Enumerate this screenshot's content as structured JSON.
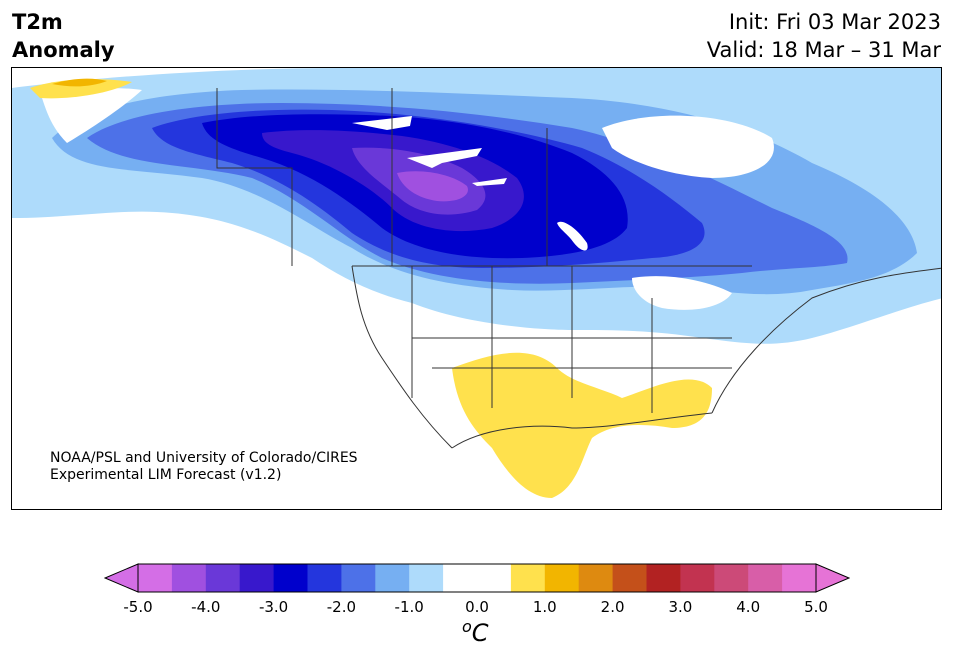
{
  "header": {
    "title_line1": "T2m",
    "title_line2": "Anomaly",
    "init": "Init: Fri 03 Mar 2023",
    "valid": "Valid: 18 Mar – 31 Mar"
  },
  "credit": {
    "line1": "NOAA/PSL and University of Colorado/CIRES",
    "line2": "Experimental LIM Forecast (v1.2)"
  },
  "colorbar": {
    "units_main": "C",
    "units_sup": "o",
    "ticks": [
      "-5.0",
      "-4.0",
      "-3.0",
      "-2.0",
      "-1.0",
      "0.0",
      "1.0",
      "2.0",
      "3.0",
      "4.0",
      "5.0"
    ],
    "colors": [
      "#d46ee6",
      "#a050e0",
      "#6a38d8",
      "#3818cc",
      "#0000cc",
      "#2436dd",
      "#4d71e8",
      "#76aff2",
      "#aedbfb",
      "#ffffff",
      "#ffffff",
      "#ffe14d",
      "#f2b500",
      "#de8a10",
      "#c4501a",
      "#b22222",
      "#c23350",
      "#cc4a78",
      "#d85ea8",
      "#e673d6"
    ],
    "under_color": "#d46ee6",
    "over_color": "#e673d6"
  },
  "map": {
    "land_color": "#ffffff",
    "border_color": "#333333"
  }
}
